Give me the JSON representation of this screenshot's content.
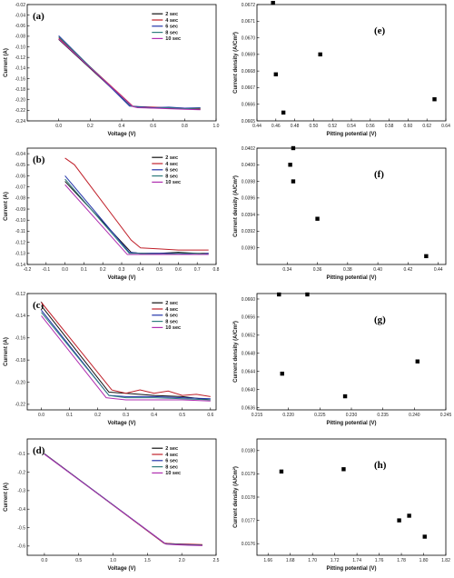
{
  "colors": {
    "s2": "#111111",
    "s4": "#c0202a",
    "s6": "#2233aa",
    "s8": "#2f7d7d",
    "s10": "#b02fb0"
  },
  "chart_data": [
    {
      "id": "a",
      "type": "line",
      "panel_label": "(a)",
      "xlabel": "Voltage (V)",
      "ylabel": "Current (A)",
      "xlim": [
        -0.2,
        1.0
      ],
      "ylim": [
        -0.24,
        -0.02
      ],
      "xticks": [
        0.0,
        0.2,
        0.4,
        0.6,
        0.8,
        1.0
      ],
      "xticklabels": [
        "0.0",
        "0.2",
        "0.4",
        "0.6",
        "0.8",
        "1.0"
      ],
      "yticks": [
        -0.24,
        -0.22,
        -0.2,
        -0.18,
        -0.16,
        -0.14,
        -0.12,
        -0.1,
        -0.08,
        -0.06,
        -0.04,
        -0.02
      ],
      "yticklabels": [
        "-0.24",
        "-0.22",
        "-0.20",
        "-0.18",
        "-0.16",
        "-0.14",
        "-0.12",
        "-0.10",
        "-0.08",
        "-0.06",
        "-0.04",
        "-0.02"
      ],
      "legend": [
        "2 sec",
        "4 sec",
        "6 sec",
        "8 sec",
        "10 sec"
      ],
      "series": [
        {
          "name": "2 sec",
          "x": [
            0.0,
            0.46,
            0.5,
            0.6,
            0.7,
            0.8,
            0.9
          ],
          "y": [
            -0.086,
            -0.212,
            -0.214,
            -0.215,
            -0.216,
            -0.217,
            -0.218
          ]
        },
        {
          "name": "4 sec",
          "x": [
            0.0,
            0.47,
            0.5,
            0.6,
            0.7,
            0.8,
            0.9
          ],
          "y": [
            -0.083,
            -0.212,
            -0.213,
            -0.214,
            -0.215,
            -0.216,
            -0.217
          ]
        },
        {
          "name": "6 sec",
          "x": [
            0.0,
            0.45,
            0.5,
            0.6,
            0.7,
            0.8,
            0.9
          ],
          "y": [
            -0.079,
            -0.212,
            -0.213,
            -0.215,
            -0.214,
            -0.216,
            -0.215
          ]
        },
        {
          "name": "8 sec",
          "x": [
            0.0,
            0.46,
            0.5,
            0.6,
            0.7,
            0.8,
            0.9
          ],
          "y": [
            -0.081,
            -0.212,
            -0.214,
            -0.216,
            -0.215,
            -0.217,
            -0.216
          ]
        },
        {
          "name": "10 sec",
          "x": [
            0.0,
            0.47,
            0.5,
            0.6,
            0.7,
            0.8,
            0.9
          ],
          "y": [
            -0.085,
            -0.213,
            -0.215,
            -0.216,
            -0.217,
            -0.218,
            -0.219
          ]
        }
      ]
    },
    {
      "id": "e",
      "type": "scatter",
      "panel_label": "(e)",
      "xlabel": "Pitting potential (V)",
      "ylabel": "Current density (A/Cm²)",
      "xlim": [
        0.44,
        0.64
      ],
      "ylim": [
        0.0665,
        0.0672
      ],
      "xticks": [
        0.44,
        0.46,
        0.48,
        0.5,
        0.52,
        0.54,
        0.56,
        0.58,
        0.6,
        0.62,
        0.64
      ],
      "xticklabels": [
        "0.44",
        "0.46",
        "0.48",
        "0.50",
        "0.52",
        "0.54",
        "0.56",
        "0.58",
        "0.60",
        "0.62",
        "0.64"
      ],
      "yticks": [
        0.0665,
        0.0666,
        0.0667,
        0.0668,
        0.0669,
        0.067,
        0.0671,
        0.0672
      ],
      "yticklabels": [
        "0.0665",
        "0.0666",
        "0.0667",
        "0.0668",
        "0.0669",
        "0.0670",
        "0.0671",
        "0.0672"
      ],
      "points": [
        [
          0.457,
          0.06721
        ],
        [
          0.46,
          0.06678
        ],
        [
          0.468,
          0.06655
        ],
        [
          0.507,
          0.0669
        ],
        [
          0.628,
          0.06663
        ]
      ]
    },
    {
      "id": "b",
      "type": "line",
      "panel_label": "(b)",
      "xlabel": "Voltage (V)",
      "ylabel": "Current (A)",
      "xlim": [
        -0.2,
        0.8
      ],
      "ylim": [
        -0.14,
        -0.035
      ],
      "xticks": [
        -0.2,
        -0.1,
        0.0,
        0.1,
        0.2,
        0.3,
        0.4,
        0.5,
        0.6,
        0.7,
        0.8
      ],
      "xticklabels": [
        "-0.2",
        "-0.1",
        "0.0",
        "0.1",
        "0.2",
        "0.3",
        "0.4",
        "0.5",
        "0.6",
        "0.7",
        "0.8"
      ],
      "yticks": [
        -0.14,
        -0.13,
        -0.12,
        -0.11,
        -0.1,
        -0.09,
        -0.08,
        -0.07,
        -0.06,
        -0.05,
        -0.04
      ],
      "yticklabels": [
        "-0.14",
        "-0.13",
        "-0.12",
        "-0.11",
        "-0.10",
        "-0.09",
        "-0.08",
        "-0.07",
        "-0.06",
        "-0.05",
        "-0.04"
      ],
      "legend": [
        "2 sec",
        "4 sec",
        "6 sec",
        "8 sec",
        "10 sec"
      ],
      "series": [
        {
          "name": "2 sec",
          "x": [
            0.0,
            0.35,
            0.4,
            0.5,
            0.6,
            0.7,
            0.76
          ],
          "y": [
            -0.065,
            -0.129,
            -0.13,
            -0.13,
            -0.129,
            -0.13,
            -0.13
          ]
        },
        {
          "name": "4 sec",
          "x": [
            0.0,
            0.05,
            0.35,
            0.4,
            0.5,
            0.6,
            0.7,
            0.76
          ],
          "y": [
            -0.044,
            -0.05,
            -0.118,
            -0.125,
            -0.126,
            -0.127,
            -0.127,
            -0.127
          ]
        },
        {
          "name": "6 sec",
          "x": [
            0.0,
            0.34,
            0.4,
            0.5,
            0.6,
            0.7,
            0.76
          ],
          "y": [
            -0.06,
            -0.129,
            -0.13,
            -0.13,
            -0.13,
            -0.131,
            -0.13
          ]
        },
        {
          "name": "8 sec",
          "x": [
            0.0,
            0.34,
            0.4,
            0.5,
            0.6,
            0.7,
            0.76
          ],
          "y": [
            -0.063,
            -0.13,
            -0.13,
            -0.131,
            -0.13,
            -0.13,
            -0.131
          ]
        },
        {
          "name": "10 sec",
          "x": [
            0.0,
            0.33,
            0.4,
            0.5,
            0.6,
            0.7,
            0.76
          ],
          "y": [
            -0.068,
            -0.131,
            -0.131,
            -0.131,
            -0.131,
            -0.131,
            -0.131
          ]
        }
      ]
    },
    {
      "id": "f",
      "type": "scatter",
      "panel_label": "(f)",
      "xlabel": "Pitting potential (V)",
      "ylabel": "Current density (A/Cm²)",
      "xlim": [
        0.32,
        0.445
      ],
      "ylim": [
        0.0388,
        0.0402
      ],
      "xticks": [
        0.34,
        0.36,
        0.38,
        0.4,
        0.42,
        0.44
      ],
      "xticklabels": [
        "0.34",
        "0.36",
        "0.38",
        "0.40",
        "0.42",
        "0.44"
      ],
      "yticks": [
        0.039,
        0.0392,
        0.0394,
        0.0396,
        0.0398,
        0.04,
        0.0402
      ],
      "yticklabels": [
        "0.0390",
        "0.0392",
        "0.0394",
        "0.0396",
        "0.0398",
        "0.0400",
        "0.0402"
      ],
      "points": [
        [
          0.342,
          0.04
        ],
        [
          0.344,
          0.0398
        ],
        [
          0.344,
          0.0402
        ],
        [
          0.36,
          0.03935
        ],
        [
          0.432,
          0.0389
        ]
      ]
    },
    {
      "id": "c",
      "type": "line",
      "panel_label": "(c)",
      "xlabel": "Voltage (V)",
      "ylabel": "Current (A)",
      "xlim": [
        -0.05,
        0.62
      ],
      "ylim": [
        -0.225,
        -0.12
      ],
      "xticks": [
        0.0,
        0.1,
        0.2,
        0.3,
        0.4,
        0.5,
        0.6
      ],
      "xticklabels": [
        "0.0",
        "0.1",
        "0.2",
        "0.3",
        "0.4",
        "0.5",
        "0.6"
      ],
      "yticks": [
        -0.22,
        -0.2,
        -0.18,
        -0.16,
        -0.14,
        -0.12
      ],
      "yticklabels": [
        "-0.22",
        "-0.20",
        "-0.18",
        "-0.16",
        "-0.14",
        "-0.12"
      ],
      "legend": [
        "2 sec",
        "4 sec",
        "6 sec",
        "8 sec",
        "10 sec"
      ],
      "series": [
        {
          "name": "2 sec",
          "x": [
            0.0,
            0.24,
            0.3,
            0.4,
            0.5,
            0.6
          ],
          "y": [
            -0.131,
            -0.209,
            -0.21,
            -0.212,
            -0.213,
            -0.216
          ]
        },
        {
          "name": "4 sec",
          "x": [
            0.0,
            0.25,
            0.3,
            0.35,
            0.4,
            0.45,
            0.5,
            0.55,
            0.6
          ],
          "y": [
            -0.128,
            -0.207,
            -0.21,
            -0.207,
            -0.21,
            -0.208,
            -0.212,
            -0.211,
            -0.213
          ]
        },
        {
          "name": "6 sec",
          "x": [
            0.0,
            0.24,
            0.3,
            0.4,
            0.5,
            0.6
          ],
          "y": [
            -0.135,
            -0.212,
            -0.213,
            -0.213,
            -0.214,
            -0.215
          ]
        },
        {
          "name": "8 sec",
          "x": [
            0.0,
            0.24,
            0.3,
            0.4,
            0.5,
            0.6
          ],
          "y": [
            -0.137,
            -0.212,
            -0.214,
            -0.214,
            -0.215,
            -0.216
          ]
        },
        {
          "name": "10 sec",
          "x": [
            0.0,
            0.23,
            0.3,
            0.4,
            0.5,
            0.6
          ],
          "y": [
            -0.14,
            -0.214,
            -0.216,
            -0.216,
            -0.216,
            -0.217
          ]
        }
      ]
    },
    {
      "id": "g",
      "type": "scatter",
      "panel_label": "(g)",
      "xlabel": "Pitting potential (V)",
      "ylabel": "Current density (A/Cm²)",
      "xlim": [
        0.215,
        0.245
      ],
      "ylim": [
        0.06355,
        0.06612
      ],
      "xticks": [
        0.215,
        0.22,
        0.225,
        0.23,
        0.235,
        0.24,
        0.245
      ],
      "xticklabels": [
        "0.215",
        "0.220",
        "0.225",
        "0.230",
        "0.235",
        "0.240",
        "0.245"
      ],
      "yticks": [
        0.0636,
        0.064,
        0.0644,
        0.0648,
        0.0652,
        0.0656,
        0.066
      ],
      "yticklabels": [
        "0.0636",
        "0.0640",
        "0.0644",
        "0.0648",
        "0.0652",
        "0.0656",
        "0.0660"
      ],
      "points": [
        [
          0.2185,
          0.0661
        ],
        [
          0.219,
          0.06435
        ],
        [
          0.223,
          0.0661
        ],
        [
          0.229,
          0.06385
        ],
        [
          0.2405,
          0.06462
        ]
      ]
    },
    {
      "id": "d",
      "type": "line",
      "panel_label": "(d)",
      "xlabel": "Voltage (V)",
      "ylabel": "Current (A)",
      "xlim": [
        -0.25,
        2.5
      ],
      "ylim": [
        -0.65,
        -0.02
      ],
      "xticks": [
        0.0,
        0.5,
        1.0,
        1.5,
        2.0,
        2.5
      ],
      "xticklabels": [
        "0.0",
        "0.5",
        "1.0",
        "1.5",
        "2.0",
        "2.5"
      ],
      "yticks": [
        -0.6,
        -0.5,
        -0.4,
        -0.3,
        -0.2,
        -0.1
      ],
      "yticklabels": [
        "-0.6",
        "-0.5",
        "-0.4",
        "-0.3",
        "-0.2",
        "-0.1"
      ],
      "legend": [
        "2 sec",
        "4 sec",
        "6 sec",
        "8 sec",
        "10 sec"
      ],
      "series": [
        {
          "name": "2 sec",
          "x": [
            0.0,
            1.75,
            1.9,
            2.1,
            2.3
          ],
          "y": [
            -0.1,
            -0.585,
            -0.59,
            -0.592,
            -0.595
          ]
        },
        {
          "name": "4 sec",
          "x": [
            0.0,
            1.74,
            1.9,
            2.1,
            2.3
          ],
          "y": [
            -0.1,
            -0.585,
            -0.588,
            -0.59,
            -0.592
          ]
        },
        {
          "name": "6 sec",
          "x": [
            0.0,
            1.76,
            1.9,
            2.1,
            2.3
          ],
          "y": [
            -0.101,
            -0.587,
            -0.59,
            -0.593,
            -0.595
          ]
        },
        {
          "name": "8 sec",
          "x": [
            0.0,
            1.76,
            1.9,
            2.1,
            2.3
          ],
          "y": [
            -0.102,
            -0.588,
            -0.591,
            -0.594,
            -0.596
          ]
        },
        {
          "name": "10 sec",
          "x": [
            0.0,
            1.77,
            1.9,
            2.1,
            2.3
          ],
          "y": [
            -0.103,
            -0.59,
            -0.593,
            -0.596,
            -0.598
          ]
        }
      ]
    },
    {
      "id": "h",
      "type": "scatter",
      "panel_label": "(h)",
      "xlabel": "Pitting potential (V)",
      "ylabel": "Current density (A/Cm²)",
      "xlim": [
        1.65,
        1.82
      ],
      "ylim": [
        0.01755,
        0.01805
      ],
      "xticks": [
        1.66,
        1.68,
        1.7,
        1.72,
        1.74,
        1.76,
        1.78,
        1.8,
        1.82
      ],
      "xticklabels": [
        "1.66",
        "1.68",
        "1.70",
        "1.72",
        "1.74",
        "1.76",
        "1.78",
        "1.80",
        "1.82"
      ],
      "yticks": [
        0.0176,
        0.0177,
        0.0178,
        0.0179,
        0.018
      ],
      "yticklabels": [
        "0.0176",
        "0.0177",
        "0.0178",
        "0.0179",
        "0.0180"
      ],
      "points": [
        [
          1.672,
          0.01791
        ],
        [
          1.728,
          0.01792
        ],
        [
          1.778,
          0.0177
        ],
        [
          1.787,
          0.01772
        ],
        [
          1.801,
          0.01763
        ]
      ]
    }
  ]
}
